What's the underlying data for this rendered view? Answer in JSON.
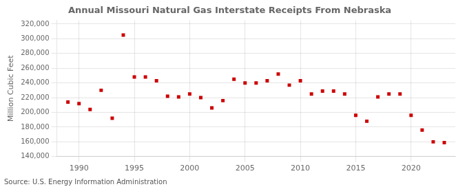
{
  "chart_data": {
    "type": "scatter",
    "title": "Annual Missouri Natural Gas Interstate Receipts From Nebraska",
    "ylabel": "Million Cubic Feet",
    "annotations": [
      "Source: U.S. Energy Information Administration"
    ],
    "x": [
      1989,
      1990,
      1991,
      1992,
      1993,
      1994,
      1995,
      1996,
      1997,
      1998,
      1999,
      2000,
      2001,
      2002,
      2003,
      2004,
      2005,
      2006,
      2007,
      2008,
      2009,
      2010,
      2011,
      2012,
      2013,
      2014,
      2015,
      2016,
      2017,
      2018,
      2019,
      2020,
      2021,
      2022,
      2023
    ],
    "values": [
      214000,
      212000,
      204000,
      230000,
      192000,
      305000,
      248000,
      248000,
      243000,
      222000,
      221000,
      225000,
      220000,
      206000,
      216000,
      245000,
      240000,
      240000,
      243000,
      252000,
      237000,
      243000,
      225000,
      229000,
      229000,
      225000,
      196000,
      188000,
      221000,
      225000,
      225000,
      196000,
      176000,
      160000,
      159000
    ],
    "color": "#cc0000",
    "marker": "square",
    "xlim": [
      1988.0,
      2024.0
    ],
    "xticks": [
      1990,
      1995,
      2000,
      2005,
      2010,
      2015,
      2020
    ],
    "ylim": [
      140000,
      325000
    ],
    "yticks": [
      {
        "value": 140000,
        "label": "140,000"
      },
      {
        "value": 160000,
        "label": "160,000"
      },
      {
        "value": 180000,
        "label": "180,000"
      },
      {
        "value": 200000,
        "label": "200,000"
      },
      {
        "value": 220000,
        "label": "220,000"
      },
      {
        "value": 240000,
        "label": "240,000"
      },
      {
        "value": 260000,
        "label": "260,000"
      },
      {
        "value": 280000,
        "label": "280,000"
      },
      {
        "value": 300000,
        "label": "300,000"
      },
      {
        "value": 320000,
        "label": "320,000"
      }
    ],
    "grid": true
  }
}
